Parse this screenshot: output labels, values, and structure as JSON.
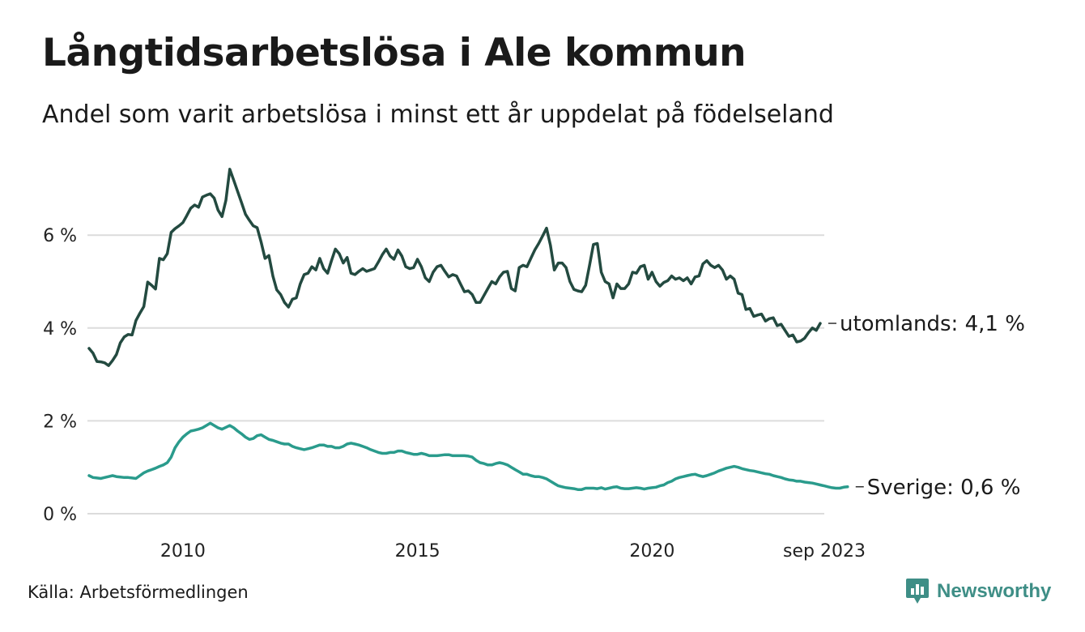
{
  "title": "Långtidsarbetslösa i Ale kommun",
  "subtitle": "Andel som varit arbetslösa i minst ett år uppdelat på födelseland",
  "source": "Källa: Arbetsförmedlingen",
  "brand": {
    "name": "Newsworthy",
    "icon": "newsworthy-logo-icon",
    "color": "#3e8e86"
  },
  "chart_data": {
    "type": "line",
    "title": "Långtidsarbetslösa i Ale kommun",
    "xlabel": "",
    "ylabel": "",
    "x_start": 2008.0,
    "x_step": 0.0833333333,
    "xlim": [
      2008.0,
      2023.67
    ],
    "ylim": [
      0,
      7.5
    ],
    "yticks": [
      {
        "value": 0,
        "label": "0 %"
      },
      {
        "value": 2,
        "label": "2 %"
      },
      {
        "value": 4,
        "label": "4 %"
      },
      {
        "value": 6,
        "label": "6 %"
      }
    ],
    "xticks": [
      {
        "value": 2010,
        "label": "2010"
      },
      {
        "value": 2015,
        "label": "2015"
      },
      {
        "value": 2020,
        "label": "2020"
      },
      {
        "value": 2023.67,
        "label": "sep 2023"
      }
    ],
    "grid": true,
    "series": [
      {
        "name": "utomlands",
        "end_label": "utomlands: 4,1 %",
        "color": "#234a40",
        "values": [
          3.56,
          3.46,
          3.28,
          3.27,
          3.25,
          3.19,
          3.3,
          3.43,
          3.68,
          3.81,
          3.86,
          3.85,
          4.16,
          4.32,
          4.46,
          4.99,
          4.92,
          4.84,
          5.5,
          5.47,
          5.6,
          6.06,
          6.14,
          6.2,
          6.27,
          6.42,
          6.58,
          6.65,
          6.6,
          6.82,
          6.86,
          6.89,
          6.8,
          6.54,
          6.4,
          6.75,
          7.42,
          7.18,
          6.94,
          6.7,
          6.45,
          6.32,
          6.2,
          6.16,
          5.85,
          5.5,
          5.56,
          5.12,
          4.82,
          4.72,
          4.55,
          4.45,
          4.62,
          4.65,
          4.95,
          5.15,
          5.18,
          5.32,
          5.25,
          5.5,
          5.28,
          5.18,
          5.45,
          5.7,
          5.6,
          5.4,
          5.52,
          5.18,
          5.15,
          5.22,
          5.28,
          5.22,
          5.25,
          5.28,
          5.42,
          5.58,
          5.7,
          5.55,
          5.48,
          5.68,
          5.55,
          5.32,
          5.28,
          5.3,
          5.48,
          5.32,
          5.08,
          5.0,
          5.2,
          5.32,
          5.35,
          5.22,
          5.1,
          5.15,
          5.12,
          4.95,
          4.78,
          4.8,
          4.72,
          4.55,
          4.55,
          4.7,
          4.85,
          5.0,
          4.95,
          5.1,
          5.2,
          5.22,
          4.85,
          4.8,
          5.3,
          5.35,
          5.32,
          5.5,
          5.68,
          5.82,
          5.98,
          6.15,
          5.78,
          5.25,
          5.4,
          5.4,
          5.3,
          5.0,
          4.83,
          4.8,
          4.78,
          4.92,
          5.35,
          5.8,
          5.82,
          5.2,
          5.0,
          4.95,
          4.65,
          4.95,
          4.85,
          4.85,
          4.95,
          5.2,
          5.18,
          5.32,
          5.35,
          5.05,
          5.2,
          5.0,
          4.9,
          4.98,
          5.02,
          5.12,
          5.05,
          5.08,
          5.02,
          5.08,
          4.95,
          5.1,
          5.12,
          5.38,
          5.45,
          5.35,
          5.3,
          5.35,
          5.25,
          5.05,
          5.12,
          5.05,
          4.75,
          4.72,
          4.4,
          4.42,
          4.25,
          4.28,
          4.3,
          4.15,
          4.2,
          4.22,
          4.05,
          4.08,
          3.95,
          3.82,
          3.85,
          3.7,
          3.72,
          3.78,
          3.9,
          4.0,
          3.95,
          4.1
        ]
      },
      {
        "name": "Sverige",
        "end_label": "Sverige: 0,6 %",
        "color": "#2a9b8c",
        "values": [
          0.82,
          0.78,
          0.77,
          0.76,
          0.78,
          0.8,
          0.82,
          0.8,
          0.79,
          0.78,
          0.78,
          0.77,
          0.76,
          0.82,
          0.88,
          0.92,
          0.95,
          0.98,
          1.02,
          1.05,
          1.1,
          1.22,
          1.42,
          1.55,
          1.65,
          1.72,
          1.78,
          1.8,
          1.82,
          1.85,
          1.9,
          1.95,
          1.9,
          1.85,
          1.82,
          1.86,
          1.9,
          1.85,
          1.78,
          1.72,
          1.65,
          1.6,
          1.62,
          1.68,
          1.7,
          1.65,
          1.6,
          1.58,
          1.55,
          1.52,
          1.5,
          1.5,
          1.45,
          1.42,
          1.4,
          1.38,
          1.4,
          1.42,
          1.45,
          1.48,
          1.48,
          1.45,
          1.45,
          1.42,
          1.42,
          1.45,
          1.5,
          1.52,
          1.5,
          1.48,
          1.45,
          1.42,
          1.38,
          1.35,
          1.32,
          1.3,
          1.3,
          1.32,
          1.32,
          1.35,
          1.35,
          1.32,
          1.3,
          1.28,
          1.28,
          1.3,
          1.28,
          1.25,
          1.25,
          1.25,
          1.26,
          1.27,
          1.27,
          1.25,
          1.25,
          1.25,
          1.25,
          1.24,
          1.22,
          1.15,
          1.1,
          1.08,
          1.05,
          1.05,
          1.08,
          1.1,
          1.08,
          1.05,
          1.0,
          0.95,
          0.9,
          0.85,
          0.85,
          0.82,
          0.8,
          0.8,
          0.78,
          0.75,
          0.7,
          0.65,
          0.6,
          0.58,
          0.56,
          0.55,
          0.54,
          0.52,
          0.52,
          0.55,
          0.55,
          0.55,
          0.54,
          0.56,
          0.53,
          0.55,
          0.57,
          0.58,
          0.55,
          0.54,
          0.54,
          0.55,
          0.56,
          0.55,
          0.53,
          0.55,
          0.56,
          0.57,
          0.6,
          0.62,
          0.67,
          0.7,
          0.75,
          0.78,
          0.8,
          0.82,
          0.84,
          0.85,
          0.82,
          0.8,
          0.82,
          0.85,
          0.88,
          0.92,
          0.95,
          0.98,
          1.0,
          1.02,
          1.0,
          0.97,
          0.95,
          0.93,
          0.92,
          0.9,
          0.88,
          0.86,
          0.85,
          0.82,
          0.8,
          0.78,
          0.75,
          0.73,
          0.72,
          0.7,
          0.7,
          0.68,
          0.67,
          0.66,
          0.64,
          0.62,
          0.6,
          0.58,
          0.56,
          0.55,
          0.55,
          0.57,
          0.58
        ]
      }
    ]
  }
}
